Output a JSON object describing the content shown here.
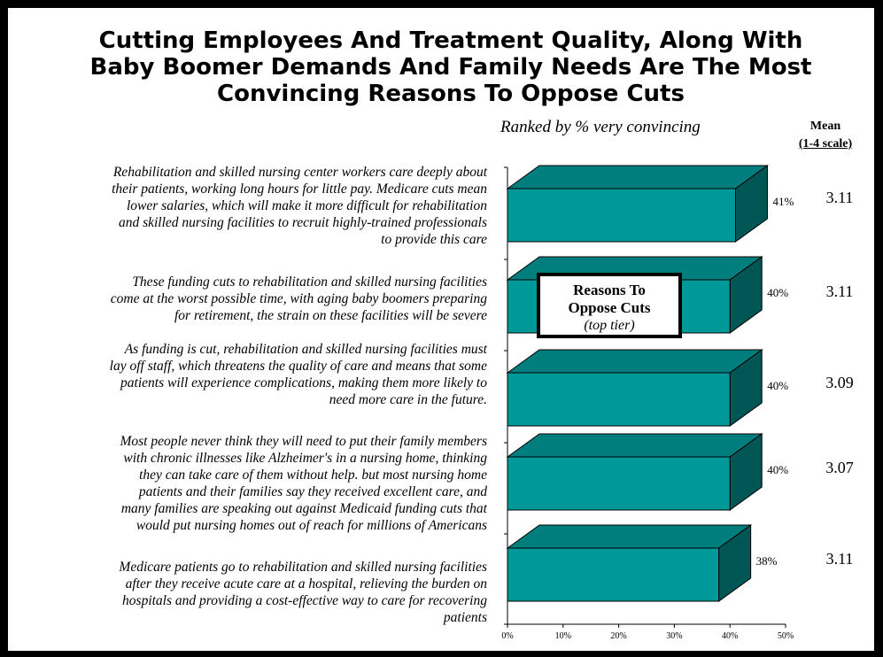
{
  "title": [
    "Cutting Employees And Treatment Quality, Along With",
    "Baby Boomer Demands And Family Needs Are The Most",
    "Convincing Reasons To Oppose Cuts"
  ],
  "subtitle": "Ranked by % very convincing",
  "mean_header": {
    "line1": "Mean",
    "line2": "(1-4 scale)"
  },
  "callout": {
    "line1": "Reasons To",
    "line2": "Oppose Cuts",
    "line3": "(top tier)"
  },
  "items": [
    {
      "lines": [
        "Rehabilitation and skilled nursing center workers care deeply about",
        "their patients, working long hours for little pay. Medicare cuts mean",
        "lower salaries, which will make it more difficult for rehabilitation",
        "and skilled nursing facilities to recruit highly-trained professionals",
        "to provide this care"
      ]
    },
    {
      "lines": [
        "These funding cuts to rehabilitation and skilled nursing facilities",
        "come at the worst possible time, with aging baby boomers preparing",
        "for retirement, the strain on these facilities will be severe"
      ]
    },
    {
      "lines": [
        "As funding is cut, rehabilitation and skilled nursing facilities must",
        "lay off staff, which threatens the quality of care and means that some",
        "patients will experience complications, making them more likely to",
        "need more care in the future."
      ]
    },
    {
      "lines": [
        "Most people never think they will need to put their family members",
        "with chronic illnesses like Alzheimer's in a nursing home, thinking",
        "they can take care of them without help. but most nursing home",
        "patients and their families say they received excellent care, and",
        "many families are speaking out against Medicaid funding cuts that",
        "would put nursing homes out of reach for millions of Americans"
      ]
    },
    {
      "lines": [
        "Medicare patients go to rehabilitation and skilled nursing facilities",
        "after they receive acute care at a hospital, relieving the burden on",
        "hospitals and providing a cost-effective way to care for recovering",
        "patients"
      ]
    }
  ],
  "chart_data": {
    "type": "bar",
    "orientation": "horizontal",
    "title": "Cutting Employees And Treatment Quality, Along With Baby Boomer Demands And Family Needs Are The Most Convincing Reasons To Oppose Cuts",
    "subtitle": "Ranked by % very convincing",
    "series": [
      {
        "values": [
          41,
          40,
          40,
          40,
          38
        ],
        "value_labels": [
          "41%",
          "40%",
          "40%",
          "40%",
          "38%"
        ]
      }
    ],
    "mean": {
      "header": "Mean (1-4 scale)",
      "values": [
        "3.11",
        "3.11",
        "3.09",
        "3.07",
        "3.11"
      ]
    },
    "xlim": [
      0,
      50
    ],
    "xticks": [
      "0%",
      "10%",
      "20%",
      "30%",
      "40%",
      "50%"
    ],
    "grid": false,
    "colors": {
      "bar_front": "#009999",
      "bar_top": "#007d7d",
      "bar_side": "#005555",
      "outline": "#000000"
    }
  }
}
